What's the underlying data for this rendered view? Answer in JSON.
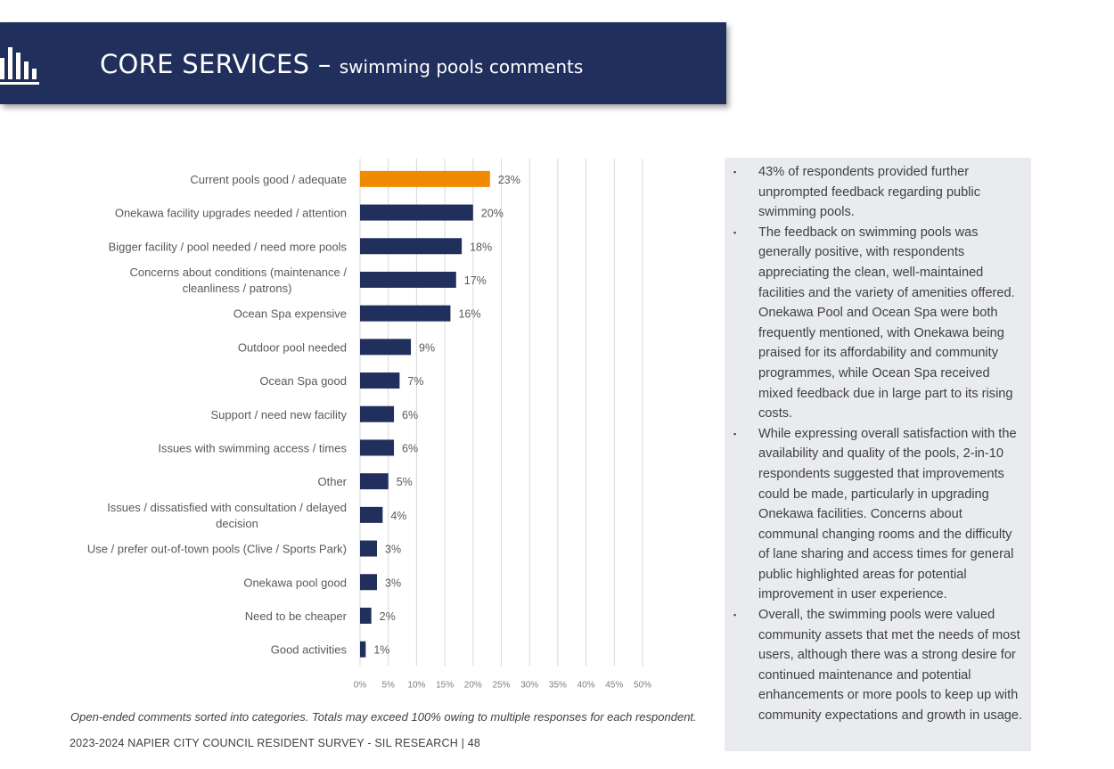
{
  "header": {
    "title": "CORE SERVICES –",
    "subtitle": "swimming pools comments",
    "icon": "bar-chart-icon"
  },
  "colors": {
    "banner": "#212f5c",
    "bar_default": "#212f5c",
    "bar_highlight": "#f08a00",
    "panel_bg": "#e9ebef"
  },
  "chart_data": {
    "type": "bar",
    "orientation": "horizontal",
    "categories": [
      [
        "Current pools good / adequate"
      ],
      [
        "Onekawa facility upgrades needed / attention"
      ],
      [
        "Bigger facility / pool needed / need more pools"
      ],
      [
        "Concerns about conditions (maintenance /",
        "cleanliness / patrons)"
      ],
      [
        "Ocean Spa expensive"
      ],
      [
        "Outdoor pool needed"
      ],
      [
        "Ocean Spa good"
      ],
      [
        "Support / need new facility"
      ],
      [
        "Issues with swimming access / times"
      ],
      [
        "Other"
      ],
      [
        "Issues / dissatisfied with consultation / delayed",
        "decision"
      ],
      [
        "Use / prefer out-of-town pools (Clive / Sports Park)"
      ],
      [
        "Onekawa pool good"
      ],
      [
        "Need to be cheaper"
      ],
      [
        "Good activities"
      ]
    ],
    "values": [
      23,
      20,
      18,
      17,
      16,
      9,
      7,
      6,
      6,
      5,
      4,
      3,
      3,
      2,
      1
    ],
    "value_labels": [
      "23%",
      "20%",
      "18%",
      "17%",
      "16%",
      "9%",
      "7%",
      "6%",
      "6%",
      "5%",
      "4%",
      "3%",
      "3%",
      "2%",
      "1%"
    ],
    "highlight_index": 0,
    "xlim": [
      0,
      50
    ],
    "x_ticks": [
      "0%",
      "5%",
      "10%",
      "15%",
      "20%",
      "25%",
      "30%",
      "35%",
      "40%",
      "45%",
      "50%"
    ],
    "grid": true
  },
  "panel": {
    "bullets": [
      "43% of respondents provided further unprompted feedback regarding public swimming pools.",
      "The feedback on swimming pools was generally positive, with respondents appreciating the clean, well-maintained facilities and the variety of amenities offered. Onekawa Pool and Ocean Spa were both frequently mentioned, with Onekawa being praised for its affordability and community programmes, while Ocean Spa received mixed feedback due in large part to its rising costs.",
      "While expressing overall satisfaction with the availability and quality of the pools, 2-in-10 respondents suggested that improvements could be made, particularly in upgrading Onekawa facilities. Concerns about communal changing rooms and the difficulty of lane sharing and access times for general public highlighted areas for potential improvement in user experience.",
      "Overall, the swimming pools were valued community assets that met the needs of most users, although there was a strong desire for continued maintenance and potential enhancements or more pools to keep up with community expectations and growth in usage."
    ]
  },
  "footnote": "Open-ended comments sorted into categories. Totals may exceed 100% owing to multiple responses for each respondent.",
  "footer": "2023-2024 NAPIER CITY COUNCIL RESIDENT SURVEY - SIL RESEARCH | 48"
}
